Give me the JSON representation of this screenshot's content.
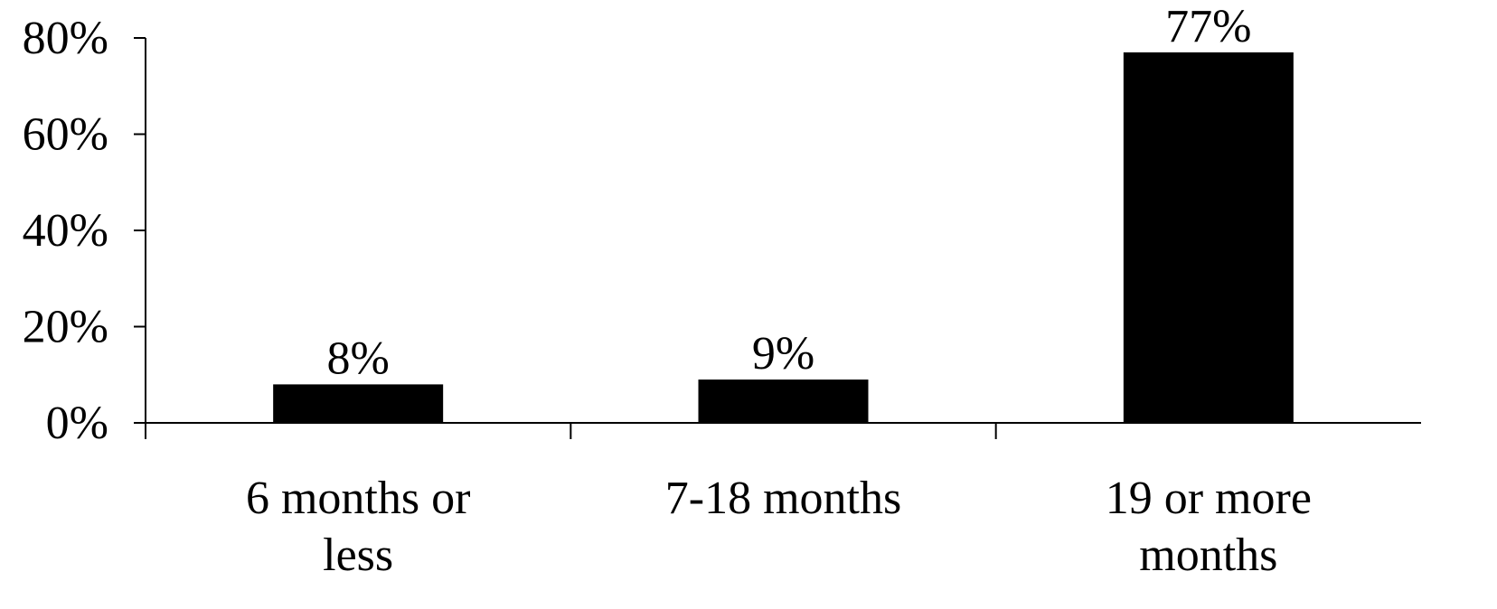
{
  "chart_data": {
    "type": "bar",
    "categories": [
      [
        "6 months or",
        "less"
      ],
      [
        "7-18 months"
      ],
      [
        "19 or more",
        "months"
      ]
    ],
    "values": [
      8,
      9,
      77
    ],
    "data_labels": [
      "8%",
      "9%",
      "77%"
    ],
    "title": "",
    "xlabel": "",
    "ylabel": "",
    "ylim": [
      0,
      80
    ],
    "yticks": [
      0,
      20,
      40,
      60,
      80
    ],
    "ytick_labels": [
      "0%",
      "20%",
      "40%",
      "60%",
      "80%"
    ],
    "grid": false,
    "legend": "none",
    "bar_color": "#000000",
    "axis_color": "#000000"
  }
}
